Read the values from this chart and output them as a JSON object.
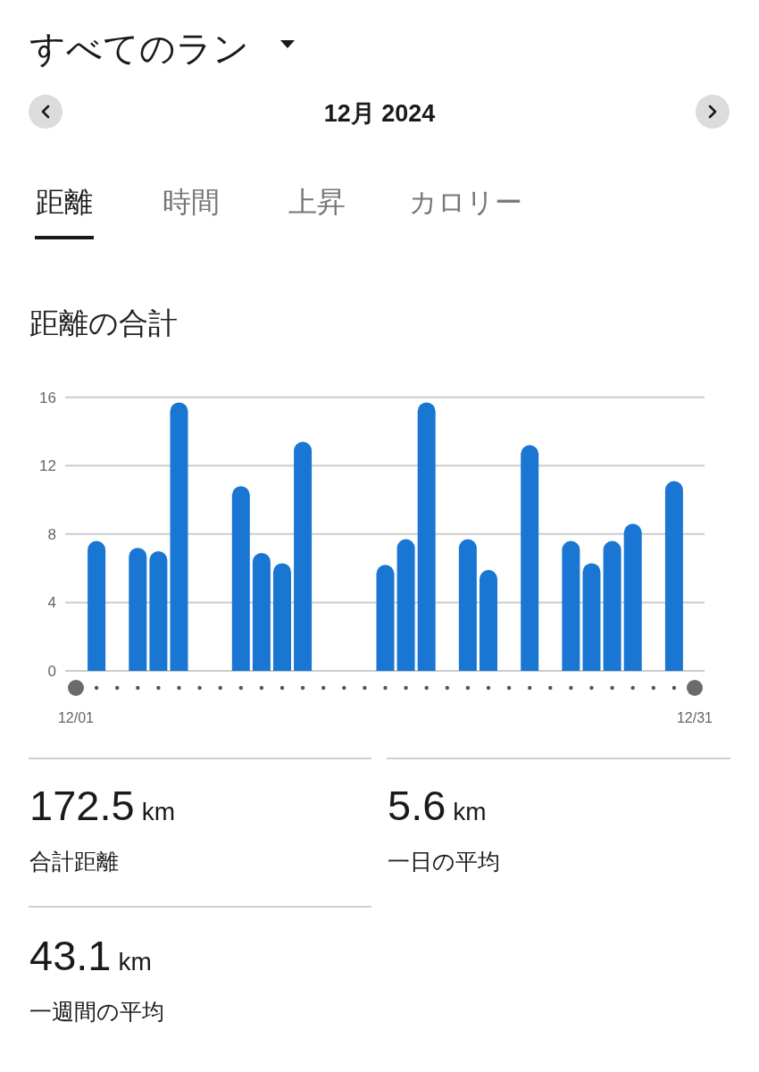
{
  "chart_data": {
    "type": "bar",
    "title": "距離の合計",
    "categories": [
      "12/01",
      null,
      null,
      null,
      null,
      null,
      null,
      null,
      null,
      null,
      null,
      null,
      null,
      null,
      null,
      null,
      null,
      null,
      null,
      null,
      null,
      null,
      null,
      null,
      null,
      null,
      null,
      null,
      null,
      null,
      "12/31"
    ],
    "values": [
      null,
      7.6,
      null,
      7.2,
      7.0,
      15.7,
      null,
      null,
      10.8,
      6.9,
      6.3,
      13.4,
      null,
      null,
      null,
      6.2,
      7.7,
      15.7,
      null,
      7.7,
      5.9,
      null,
      13.2,
      null,
      7.6,
      6.3,
      7.6,
      8.6,
      null,
      11.1,
      null
    ],
    "color": "#1976d2",
    "ylim": [
      0,
      16
    ],
    "yticks": [
      0,
      4,
      8,
      12,
      16
    ],
    "grid": "y",
    "annotations": [
      "すべてのラン",
      "12月 2024",
      "距離",
      "時間",
      "上昇",
      "カロリー",
      "172.5 km",
      "合計距離",
      "5.6 km",
      "一日の平均",
      "43.1 km",
      "一週間の平均"
    ]
  }
}
